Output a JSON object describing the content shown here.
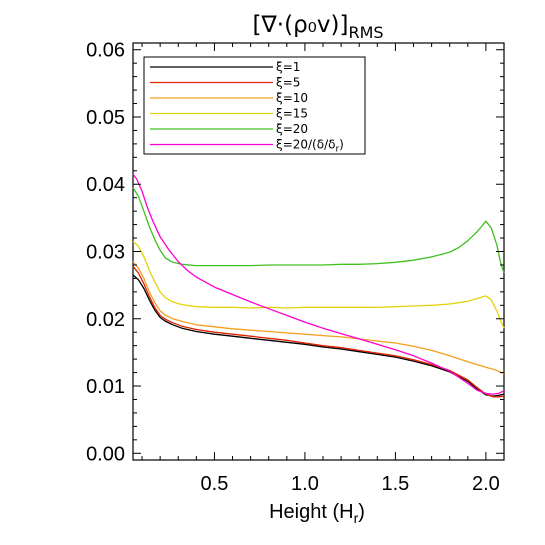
{
  "chart_data": {
    "type": "line",
    "title": "[∇·(ρ₀v)]",
    "title_subscript": "RMS",
    "xlabel": "Height (H",
    "xlabel_subscript": "r",
    "xlabel_suffix": ")",
    "ylabel": "",
    "xlim": [
      0.05,
      2.1
    ],
    "ylim": [
      -0.001,
      0.061
    ],
    "xticks": [
      0.5,
      1.0,
      1.5,
      2.0
    ],
    "xtick_labels": [
      "0.5",
      "1.0",
      "1.5",
      "2.0"
    ],
    "yticks": [
      0.0,
      0.01,
      0.02,
      0.03,
      0.04,
      0.05,
      0.06
    ],
    "ytick_labels": [
      "0.00",
      "0.01",
      "0.02",
      "0.03",
      "0.04",
      "0.05",
      "0.06"
    ],
    "grid": false,
    "legend_position": "top-left",
    "series": [
      {
        "name": "ξ=1",
        "color": "#000000",
        "x": [
          0.05,
          0.08,
          0.11,
          0.14,
          0.17,
          0.2,
          0.23,
          0.27,
          0.32,
          0.4,
          0.5,
          0.6,
          0.7,
          0.8,
          0.9,
          1.0,
          1.1,
          1.2,
          1.3,
          1.4,
          1.5,
          1.6,
          1.7,
          1.8,
          1.9,
          1.95,
          2.0,
          2.04,
          2.07,
          2.1
        ],
        "y": [
          0.0265,
          0.0258,
          0.0245,
          0.0228,
          0.0213,
          0.0202,
          0.0196,
          0.0191,
          0.0186,
          0.0181,
          0.0177,
          0.0174,
          0.0171,
          0.0168,
          0.0165,
          0.0162,
          0.0158,
          0.0155,
          0.0151,
          0.0147,
          0.0143,
          0.0137,
          0.013,
          0.0121,
          0.0107,
          0.0096,
          0.0087,
          0.0085,
          0.0086,
          0.0088
        ]
      },
      {
        "name": "ξ=5",
        "color": "#e02000",
        "x": [
          0.05,
          0.08,
          0.11,
          0.14,
          0.17,
          0.2,
          0.23,
          0.27,
          0.32,
          0.4,
          0.5,
          0.6,
          0.7,
          0.8,
          0.9,
          1.0,
          1.1,
          1.2,
          1.3,
          1.4,
          1.5,
          1.6,
          1.7,
          1.8,
          1.9,
          1.95,
          2.0,
          2.04,
          2.07,
          2.1
        ],
        "y": [
          0.0278,
          0.0268,
          0.0252,
          0.0233,
          0.0217,
          0.0205,
          0.0199,
          0.0194,
          0.0189,
          0.0184,
          0.018,
          0.0177,
          0.0174,
          0.0171,
          0.0168,
          0.0164,
          0.016,
          0.0157,
          0.0153,
          0.0149,
          0.0145,
          0.0139,
          0.0132,
          0.0123,
          0.0109,
          0.0098,
          0.0088,
          0.0084,
          0.0084,
          0.0085
        ]
      },
      {
        "name": "ξ=10",
        "color": "#f5a020",
        "x": [
          0.05,
          0.08,
          0.11,
          0.14,
          0.17,
          0.2,
          0.23,
          0.27,
          0.32,
          0.4,
          0.5,
          0.6,
          0.7,
          0.8,
          0.9,
          1.0,
          1.1,
          1.2,
          1.3,
          1.4,
          1.5,
          1.6,
          1.7,
          1.8,
          1.9,
          1.95,
          2.0,
          2.04,
          2.07,
          2.1
        ],
        "y": [
          0.0285,
          0.0275,
          0.026,
          0.024,
          0.0224,
          0.0212,
          0.0205,
          0.02,
          0.0196,
          0.0191,
          0.0188,
          0.0185,
          0.0183,
          0.0181,
          0.0179,
          0.0177,
          0.0175,
          0.0173,
          0.017,
          0.0167,
          0.0164,
          0.0159,
          0.0153,
          0.0145,
          0.0136,
          0.0132,
          0.0128,
          0.0125,
          0.0122,
          0.0118
        ]
      },
      {
        "name": "ξ=15",
        "color": "#e6d20a",
        "x": [
          0.05,
          0.08,
          0.11,
          0.14,
          0.17,
          0.2,
          0.23,
          0.27,
          0.32,
          0.4,
          0.5,
          0.6,
          0.7,
          0.8,
          0.9,
          1.0,
          1.1,
          1.2,
          1.3,
          1.4,
          1.5,
          1.6,
          1.7,
          1.8,
          1.9,
          1.95,
          2.0,
          2.03,
          2.06,
          2.08,
          2.1
        ],
        "y": [
          0.0315,
          0.0308,
          0.0292,
          0.0272,
          0.0255,
          0.024,
          0.0231,
          0.0225,
          0.0221,
          0.0218,
          0.0217,
          0.0217,
          0.0216,
          0.0217,
          0.0216,
          0.0217,
          0.0217,
          0.0217,
          0.0217,
          0.0217,
          0.0218,
          0.0219,
          0.022,
          0.0222,
          0.0226,
          0.023,
          0.0234,
          0.0228,
          0.0212,
          0.0198,
          0.0186
        ]
      },
      {
        "name": "ξ=20",
        "color": "#40c020",
        "x": [
          0.05,
          0.08,
          0.11,
          0.14,
          0.17,
          0.2,
          0.23,
          0.27,
          0.32,
          0.4,
          0.5,
          0.6,
          0.7,
          0.8,
          0.9,
          1.0,
          1.1,
          1.2,
          1.3,
          1.4,
          1.5,
          1.6,
          1.7,
          1.8,
          1.85,
          1.9,
          1.95,
          2.0,
          2.03,
          2.06,
          2.08,
          2.1
        ],
        "y": [
          0.0395,
          0.0382,
          0.036,
          0.0337,
          0.0318,
          0.0302,
          0.029,
          0.0284,
          0.0281,
          0.0279,
          0.0279,
          0.0279,
          0.0279,
          0.028,
          0.028,
          0.028,
          0.028,
          0.0281,
          0.0281,
          0.0282,
          0.0284,
          0.0287,
          0.0292,
          0.0299,
          0.0306,
          0.0316,
          0.0329,
          0.0345,
          0.0335,
          0.031,
          0.0285,
          0.0268
        ]
      },
      {
        "name": "ξ=20/(δ/δ",
        "name_subscript": "r",
        "name_suffix": ")",
        "color": "#ff00d0",
        "x": [
          0.05,
          0.07,
          0.1,
          0.13,
          0.16,
          0.2,
          0.25,
          0.3,
          0.35,
          0.4,
          0.5,
          0.6,
          0.7,
          0.8,
          0.9,
          1.0,
          1.1,
          1.2,
          1.3,
          1.4,
          1.5,
          1.6,
          1.7,
          1.8,
          1.9,
          1.95,
          2.0,
          2.04,
          2.07,
          2.1
        ],
        "y": [
          0.0415,
          0.0408,
          0.039,
          0.0365,
          0.0345,
          0.0322,
          0.0302,
          0.0285,
          0.0272,
          0.0262,
          0.0247,
          0.0236,
          0.0225,
          0.0215,
          0.0205,
          0.0195,
          0.0186,
          0.0178,
          0.017,
          0.0162,
          0.0154,
          0.0145,
          0.0134,
          0.0122,
          0.0104,
          0.0094,
          0.0089,
          0.0088,
          0.0089,
          0.0093
        ]
      }
    ]
  }
}
